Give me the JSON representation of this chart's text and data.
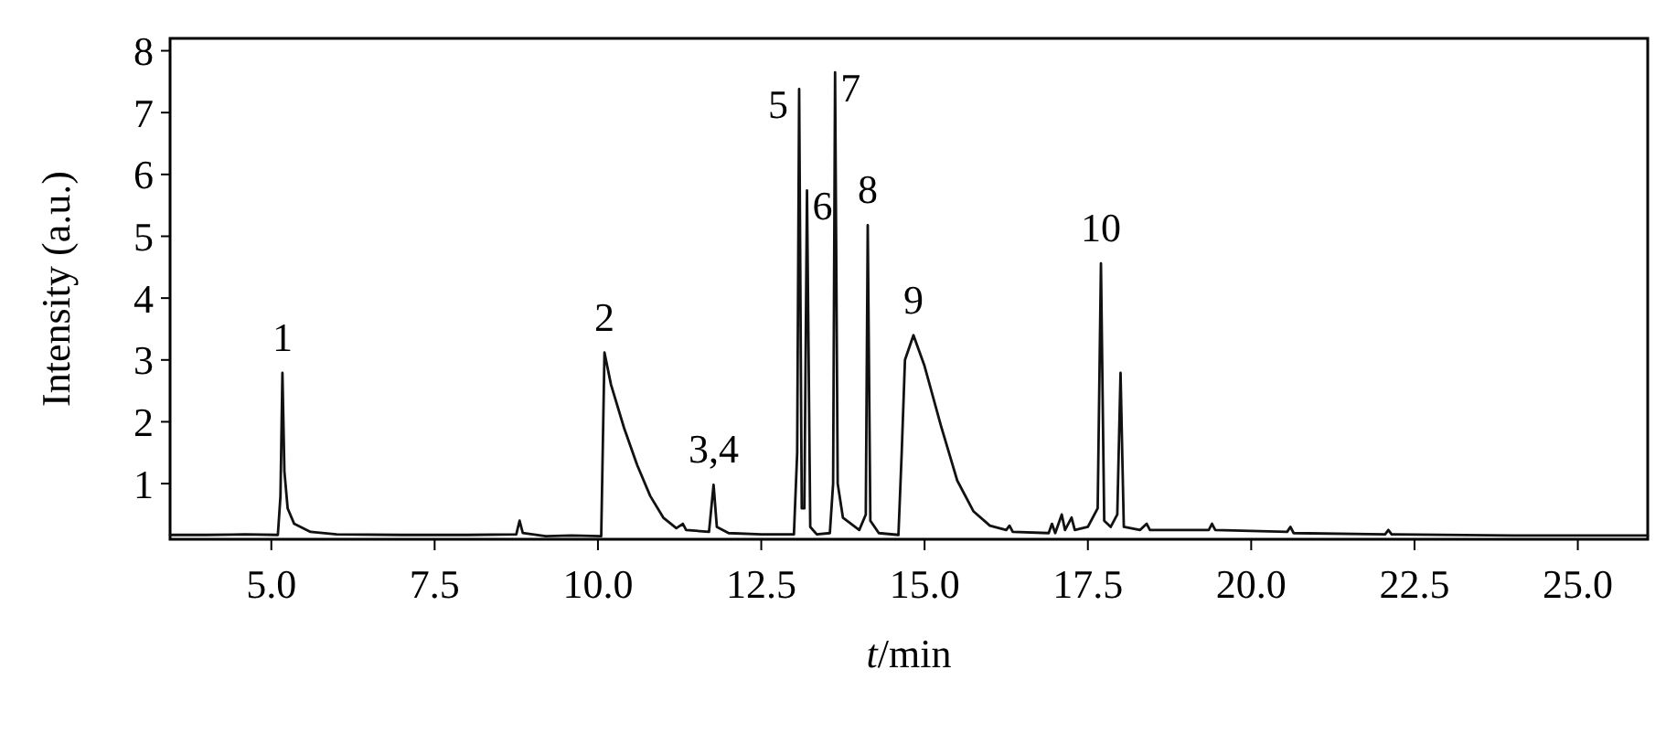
{
  "chart_data": {
    "type": "line",
    "xlabel": "t/min",
    "ylabel": "Intensity (a.u.)",
    "xlim": [
      3.45,
      26.07
    ],
    "ylim": [
      0.1,
      8.2
    ],
    "xticks": [
      {
        "value": 5,
        "label": "5.0"
      },
      {
        "value": 7.5,
        "label": "7.5"
      },
      {
        "value": 10,
        "label": "10.0"
      },
      {
        "value": 12.5,
        "label": "12.5"
      },
      {
        "value": 15,
        "label": "15.0"
      },
      {
        "value": 17.5,
        "label": "17.5"
      },
      {
        "value": 20,
        "label": "20.0"
      },
      {
        "value": 22.5,
        "label": "22.5"
      },
      {
        "value": 25,
        "label": "25.0"
      }
    ],
    "yticks": [
      1,
      2,
      3,
      4,
      5,
      6,
      7,
      8
    ],
    "grid": false,
    "marker": "none",
    "line_style": "solid",
    "series": [
      {
        "color": "#111111",
        "x": [
          3.45,
          4.0,
          4.6,
          5.1,
          5.14,
          5.17,
          5.2,
          5.25,
          5.35,
          5.6,
          6.0,
          7.0,
          8.0,
          8.75,
          8.8,
          8.85,
          9.2,
          9.6,
          10.05,
          10.1,
          10.2,
          10.4,
          10.6,
          10.8,
          11.0,
          11.2,
          11.3,
          11.35,
          11.7,
          11.77,
          11.82,
          12.0,
          12.5,
          13.0,
          13.05,
          13.08,
          13.12,
          13.16,
          13.2,
          13.25,
          13.35,
          13.55,
          13.6,
          13.63,
          13.67,
          13.75,
          14.0,
          14.1,
          14.13,
          14.17,
          14.3,
          14.6,
          14.65,
          14.7,
          14.83,
          15.0,
          15.25,
          15.5,
          15.75,
          16.0,
          16.25,
          16.3,
          16.35,
          16.9,
          16.95,
          17.0,
          17.1,
          17.15,
          17.25,
          17.3,
          17.5,
          17.65,
          17.7,
          17.75,
          17.85,
          17.95,
          18.0,
          18.05,
          18.3,
          18.4,
          18.45,
          19.35,
          19.4,
          19.45,
          20.55,
          20.6,
          20.65,
          22.05,
          22.1,
          22.15,
          24.0,
          26.07
        ],
        "values": [
          0.17,
          0.17,
          0.18,
          0.17,
          0.8,
          2.79,
          1.2,
          0.6,
          0.35,
          0.22,
          0.18,
          0.17,
          0.17,
          0.18,
          0.4,
          0.2,
          0.15,
          0.16,
          0.15,
          3.12,
          2.6,
          1.9,
          1.3,
          0.8,
          0.45,
          0.28,
          0.35,
          0.25,
          0.22,
          0.98,
          0.3,
          0.2,
          0.18,
          0.18,
          1.5,
          7.38,
          0.6,
          0.6,
          5.74,
          0.3,
          0.18,
          0.2,
          1.0,
          7.65,
          1.0,
          0.45,
          0.25,
          0.5,
          5.18,
          0.4,
          0.2,
          0.17,
          1.5,
          3.0,
          3.4,
          2.9,
          1.94,
          1.05,
          0.55,
          0.32,
          0.25,
          0.32,
          0.22,
          0.2,
          0.35,
          0.2,
          0.5,
          0.25,
          0.45,
          0.25,
          0.3,
          0.6,
          4.56,
          0.4,
          0.3,
          0.5,
          2.79,
          0.3,
          0.25,
          0.35,
          0.25,
          0.25,
          0.35,
          0.25,
          0.22,
          0.3,
          0.2,
          0.18,
          0.25,
          0.18,
          0.16,
          0.16
        ]
      }
    ],
    "annotations": [
      {
        "text": "1",
        "x": 5.17,
        "y": 2.79
      },
      {
        "text": "2",
        "x": 10.1,
        "y": 3.12
      },
      {
        "text": "3,4",
        "x": 11.77,
        "y": 0.98
      },
      {
        "text": "5",
        "x": 13.08,
        "y": 7.38
      },
      {
        "text": "6",
        "x": 13.2,
        "y": 5.74
      },
      {
        "text": "7",
        "x": 13.63,
        "y": 7.65
      },
      {
        "text": "8",
        "x": 14.13,
        "y": 5.18
      },
      {
        "text": "9",
        "x": 14.83,
        "y": 3.4
      },
      {
        "text": "10",
        "x": 17.7,
        "y": 4.56
      }
    ]
  }
}
